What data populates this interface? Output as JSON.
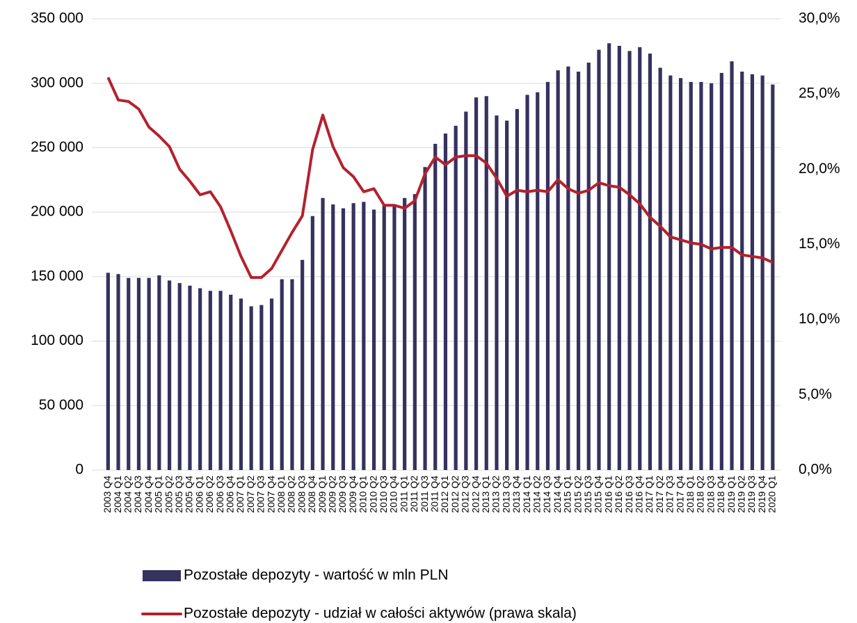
{
  "chart_data": {
    "type": "bar_line",
    "categories": [
      "2003 Q4",
      "2004 Q1",
      "2004 Q2",
      "2004 Q3",
      "2004 Q4",
      "2005 Q1",
      "2005 Q2",
      "2005 Q3",
      "2005 Q4",
      "2006 Q1",
      "2006 Q2",
      "2006 Q3",
      "2006 Q4",
      "2007 Q1",
      "2007 Q2",
      "2007 Q3",
      "2007 Q4",
      "2008 Q1",
      "2008 Q2",
      "2008 Q3",
      "2008 Q4",
      "2009 Q1",
      "2009 Q2",
      "2009 Q3",
      "2009 Q4",
      "2010 Q1",
      "2010 Q2",
      "2010 Q3",
      "2010 Q4",
      "2011 Q1",
      "2011 Q2",
      "2011 Q3",
      "2011 Q4",
      "2012 Q1",
      "2012 Q2",
      "2012 Q3",
      "2012 Q4",
      "2013 Q1",
      "2013 Q2",
      "2013 Q3",
      "2013 Q4",
      "2014 Q1",
      "2014 Q2",
      "2014 Q3",
      "2014 Q4",
      "2015 Q1",
      "2015 Q2",
      "2015 Q3",
      "2015 Q4",
      "2016 Q1",
      "2016 Q2",
      "2016 Q3",
      "2016 Q4",
      "2017 Q1",
      "2017 Q2",
      "2017 Q3",
      "2017 Q4",
      "2018 Q1",
      "2018 Q2",
      "2018 Q3",
      "2018 Q4",
      "2019 Q1",
      "2019 Q2",
      "2019 Q3",
      "2019 Q4",
      "2020 Q1"
    ],
    "series": [
      {
        "name": "Pozostałe depozyty - wartość w mln PLN",
        "type": "bar",
        "color": "#35325e",
        "values": [
          153000,
          152000,
          149000,
          149000,
          149000,
          151000,
          147000,
          145000,
          143000,
          141000,
          139000,
          139000,
          136000,
          133000,
          127000,
          128000,
          133000,
          148000,
          148000,
          163000,
          197000,
          211000,
          206000,
          203000,
          207000,
          208000,
          202000,
          205000,
          205000,
          211000,
          214000,
          235000,
          253000,
          261000,
          267000,
          278000,
          289000,
          290000,
          275000,
          271000,
          280000,
          291000,
          293000,
          301000,
          310000,
          313000,
          309000,
          316000,
          326000,
          331000,
          329000,
          325000,
          328000,
          323000,
          312000,
          306000,
          304000,
          301000,
          301000,
          300000,
          308000,
          317000,
          309000,
          307000,
          306000,
          299000
        ]
      },
      {
        "name": "Pozostałe depozyty - udział w całości aktywów (prawa skala)",
        "type": "line",
        "axis": "y2",
        "color": "#b5202e",
        "values": [
          26.1,
          24.6,
          24.5,
          24.0,
          22.8,
          22.2,
          21.5,
          20.0,
          19.2,
          18.3,
          18.5,
          17.5,
          15.9,
          14.2,
          12.8,
          12.8,
          13.4,
          14.6,
          15.8,
          16.9,
          21.3,
          23.6,
          21.5,
          20.1,
          19.5,
          18.5,
          18.7,
          17.6,
          17.6,
          17.4,
          17.9,
          19.7,
          20.8,
          20.3,
          20.8,
          20.9,
          20.9,
          20.4,
          19.4,
          18.2,
          18.6,
          18.5,
          18.6,
          18.5,
          19.3,
          18.7,
          18.4,
          18.6,
          19.1,
          18.9,
          18.8,
          18.3,
          17.7,
          16.8,
          16.2,
          15.5,
          15.3,
          15.1,
          15.0,
          14.7,
          14.8,
          14.8,
          14.3,
          14.2,
          14.1,
          13.8
        ]
      }
    ],
    "ylim": [
      0,
      350000
    ],
    "yticks": [
      0,
      {
        "value": 50000,
        "label": "50 000"
      },
      {
        "value": 100000,
        "label": "100 000"
      },
      {
        "value": 150000,
        "label": "150 000"
      },
      {
        "value": 200000,
        "label": "200 000"
      },
      {
        "value": 250000,
        "label": "250 000"
      },
      {
        "value": 300000,
        "label": "300 000"
      },
      {
        "value": 350000,
        "label": "350 000"
      }
    ],
    "y2lim": [
      0,
      30
    ],
    "y2ticks": [
      {
        "value": 0,
        "label": "0,0%"
      },
      {
        "value": 5,
        "label": "5,0%"
      },
      {
        "value": 10,
        "label": "10,0%"
      },
      {
        "value": 15,
        "label": "15,0%"
      },
      {
        "value": 20,
        "label": "20,0%"
      },
      {
        "value": 25,
        "label": "25,0%"
      },
      {
        "value": 30,
        "label": "30,0%"
      }
    ],
    "grid": true,
    "legend": "bottom"
  }
}
